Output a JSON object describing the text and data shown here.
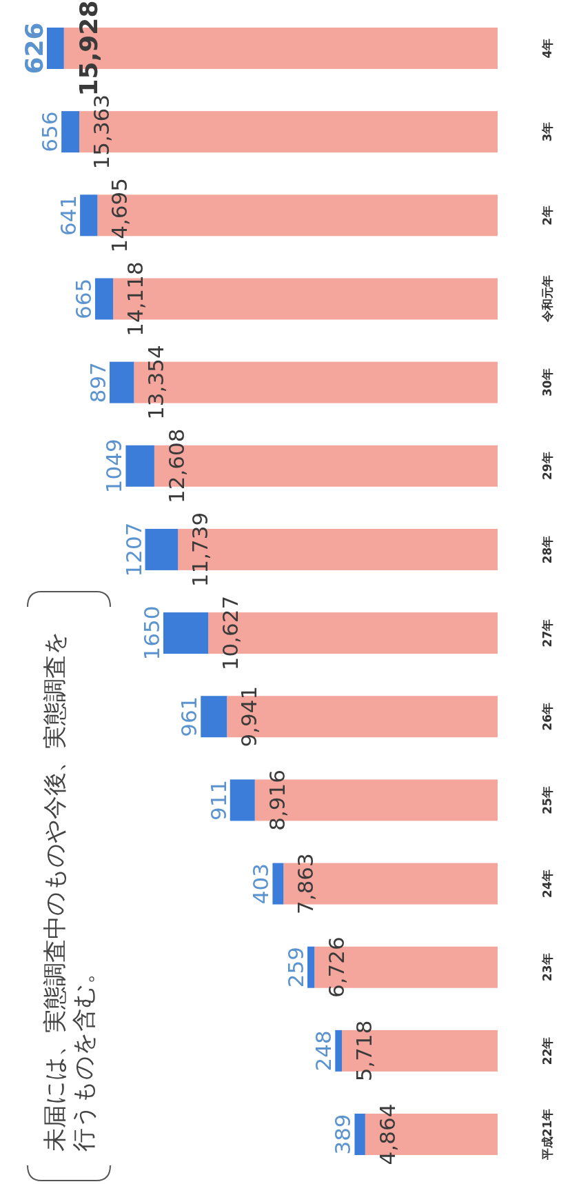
{
  "chart_data": {
    "type": "bar",
    "orientation": "horizontal",
    "stacked": true,
    "categories": [
      "4年",
      "3年",
      "2年",
      "令和元年",
      "30年",
      "29年",
      "28年",
      "27年",
      "26年",
      "25年",
      "24年",
      "23年",
      "22年",
      "平成21年"
    ],
    "series": [
      {
        "color": "#f4a69d",
        "values": [
          15928,
          15363,
          14695,
          14118,
          13354,
          12608,
          11739,
          10627,
          9941,
          8916,
          7863,
          6726,
          5718,
          4864
        ],
        "value_labels": [
          "15,928",
          "15,363",
          "14,695",
          "14,118",
          "13,354",
          "12,608",
          "11,739",
          "10,627",
          "9,941",
          "8,916",
          "7,863",
          "6,726",
          "5,718",
          "4,864"
        ]
      },
      {
        "color": "#3b7dd8",
        "values": [
          626,
          656,
          641,
          665,
          897,
          1049,
          1207,
          1650,
          961,
          911,
          403,
          259,
          248,
          389
        ],
        "value_labels": [
          "626",
          "656",
          "641",
          "665",
          "897",
          "1049",
          "1207",
          "1650",
          "961",
          "911",
          "403",
          "259",
          "248",
          "389"
        ]
      }
    ],
    "annotations": [
      "未届には、実態調査中のものや今後、実態調査を行うものを含む。"
    ]
  }
}
